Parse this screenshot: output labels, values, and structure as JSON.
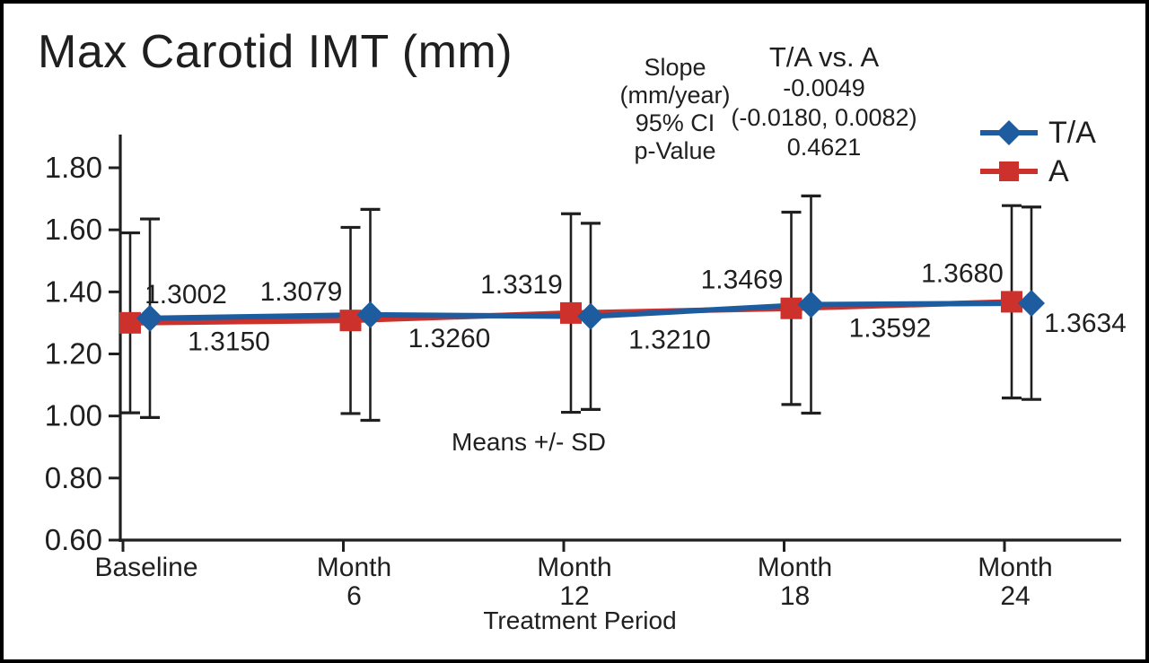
{
  "chart_data": {
    "type": "line",
    "title": "Max Carotid IMT (mm)",
    "xlabel": "Treatment Period",
    "ylabel": "",
    "annotation": "Means +/- SD",
    "categories": [
      "Baseline",
      "Month 6",
      "Month 12",
      "Month 18",
      "Month 24"
    ],
    "ylim": [
      0.6,
      1.8
    ],
    "yticks": [
      0.6,
      0.8,
      1.0,
      1.2,
      1.4,
      1.6,
      1.8
    ],
    "ytick_labels": [
      "0.60",
      "0.80",
      "1.00",
      "1.20",
      "1.40",
      "1.60",
      "1.80"
    ],
    "grid": false,
    "legend_position": "top-right",
    "error_bars": "mean +/- standard deviation",
    "series": [
      {
        "name": "T/A",
        "marker": "diamond",
        "color": "#1d5c9e",
        "values": [
          1.315,
          1.326,
          1.321,
          1.3592,
          1.3634
        ],
        "sd": [
          0.32,
          0.34,
          0.3,
          0.35,
          0.31
        ],
        "value_labels": [
          "1.3150",
          "1.3260",
          "1.3210",
          "1.3592",
          "1.3634"
        ],
        "label_side": "below"
      },
      {
        "name": "A",
        "marker": "square",
        "color": "#cd312b",
        "values": [
          1.3002,
          1.3079,
          1.3319,
          1.3469,
          1.368
        ],
        "sd": [
          0.29,
          0.3,
          0.32,
          0.31,
          0.31
        ],
        "value_labels": [
          "1.3002",
          "1.3079",
          "1.3319",
          "1.3469",
          "1.3680"
        ],
        "label_side": "above"
      }
    ],
    "stats": {
      "row_labels": [
        "Slope",
        "(mm/year)",
        "95% CI",
        "p-Value"
      ],
      "column_header": "T/A vs. A",
      "values": [
        "-0.0049",
        "(-0.0180, 0.0082)",
        "0.4621"
      ]
    }
  }
}
